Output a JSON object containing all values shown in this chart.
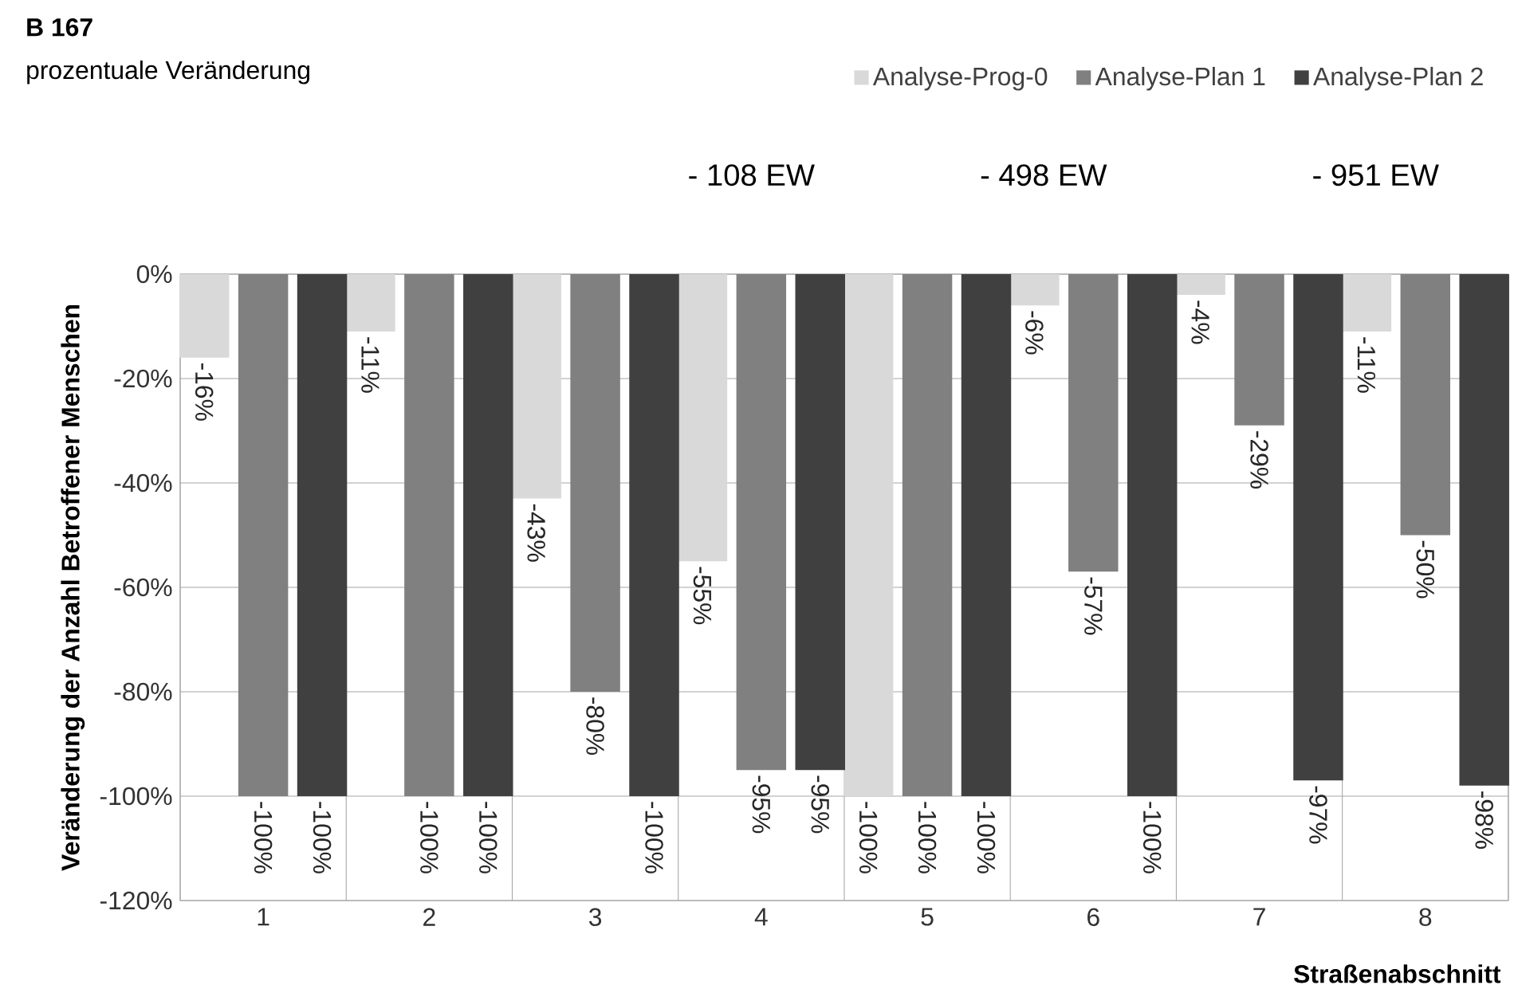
{
  "chart_data": {
    "type": "bar",
    "title": "B 167",
    "subtitle": "prozentuale Veränderung",
    "xlabel": "Straßenabschnitt",
    "ylabel": "Veränderung der Anzahl Betroffener Menschen",
    "categories": [
      "1",
      "2",
      "3",
      "4",
      "5",
      "6",
      "7",
      "8"
    ],
    "series": [
      {
        "name": "Analyse-Prog-0",
        "color": "#d9d9d9",
        "values": [
          -16,
          -11,
          -43,
          -55,
          -100,
          -6,
          -4,
          -11
        ],
        "value_labels": [
          "-16%",
          "-11%",
          "-43%",
          "-55%",
          "-100%",
          "-6%",
          "-4%",
          "-11%"
        ]
      },
      {
        "name": "Analyse-Plan 1",
        "color": "#808080",
        "values": [
          -100,
          -100,
          -80,
          -95,
          -100,
          -57,
          -29,
          -50
        ],
        "value_labels": [
          "-100%",
          "-100%",
          "-80%",
          "-95%",
          "-100%",
          "-57%",
          "-29%",
          "-50%"
        ]
      },
      {
        "name": "Analyse-Plan 2",
        "color": "#404040",
        "values": [
          -100,
          -100,
          -100,
          -95,
          -100,
          -100,
          -97,
          -98
        ],
        "value_labels": [
          "-100%",
          "-100%",
          "-100%",
          "-95%",
          "-100%",
          "-100%",
          "-97%",
          "-98%"
        ]
      }
    ],
    "ylim": [
      -120,
      0
    ],
    "yticks": [
      {
        "value": 0,
        "label": "0%"
      },
      {
        "value": -20,
        "label": "-20%"
      },
      {
        "value": -40,
        "label": "-40%"
      },
      {
        "value": -60,
        "label": "-60%"
      },
      {
        "value": -80,
        "label": "-80%"
      },
      {
        "value": -100,
        "label": "-100%"
      },
      {
        "value": -120,
        "label": "-120%"
      }
    ],
    "grid": true,
    "legend": "top right",
    "annotations": [
      "- 108 EW",
      "- 498 EW",
      "- 951 EW"
    ]
  }
}
